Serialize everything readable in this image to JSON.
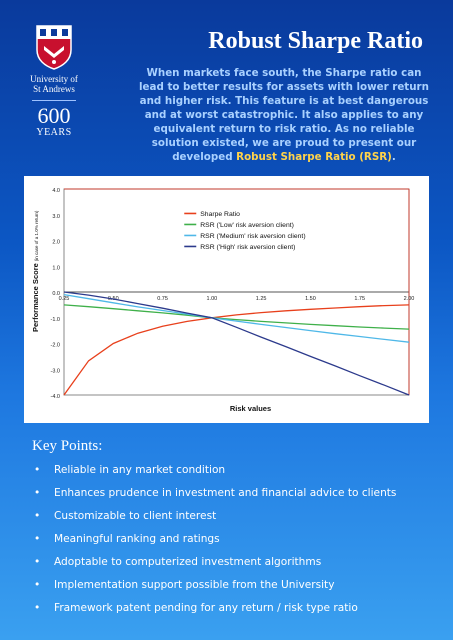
{
  "branding": {
    "university_line1": "University of",
    "university_line2": "St Andrews",
    "years_number": "600",
    "years_label": "YEARS"
  },
  "header": {
    "title": "Robust Sharpe Ratio"
  },
  "intro": {
    "text_main": "When markets face south, the Sharpe ratio can lead to better results for assets with lower return and higher risk. This feature is at best dangerous and at worst catastrophic. It also applies to any equivalent return to risk ratio. As no reliable solution existed, we are proud to present our developed ",
    "highlight": "Robust Sharpe Ratio (RSR)",
    "text_end": "."
  },
  "chart_data": {
    "type": "line",
    "xlabel": "Risk values",
    "ylabel": "Performance Score",
    "ylabel_note": "(in case of a 1.0% return)",
    "xlim": [
      0.25,
      2.0
    ],
    "ylim": [
      -4.0,
      4.0
    ],
    "x_ticks": [
      "0.25",
      "0.50",
      "0.75",
      "1.00",
      "1.25",
      "1.50",
      "1.75",
      "2.00"
    ],
    "y_ticks": [
      "4.0",
      "3.0",
      "2.0",
      "1.0",
      "0.0",
      "-1.0",
      "-2.0",
      "-3.0",
      "-4.0"
    ],
    "legend_position": "top-right",
    "x": [
      0.25,
      0.375,
      0.5,
      0.625,
      0.75,
      0.875,
      1.0,
      1.125,
      1.25,
      1.375,
      1.5,
      1.625,
      1.75,
      1.875,
      2.0
    ],
    "series": [
      {
        "name": "Sharpe Ratio",
        "color": "#e8401c",
        "values": [
          -4.0,
          -2.67,
          -2.0,
          -1.6,
          -1.33,
          -1.14,
          -1.0,
          -0.89,
          -0.8,
          -0.73,
          -0.67,
          -0.62,
          -0.57,
          -0.53,
          -0.5
        ]
      },
      {
        "name": "RSR ('Low' risk aversion client)",
        "color": "#3fb04a",
        "values": [
          -0.5,
          -0.57,
          -0.65,
          -0.73,
          -0.81,
          -0.9,
          -1.0,
          -1.07,
          -1.14,
          -1.2,
          -1.26,
          -1.31,
          -1.36,
          -1.4,
          -1.44
        ]
      },
      {
        "name": "RSR ('Medium' risk aversion client)",
        "color": "#4fb8e8",
        "values": [
          -0.1,
          -0.26,
          -0.42,
          -0.58,
          -0.72,
          -0.86,
          -1.0,
          -1.13,
          -1.26,
          -1.38,
          -1.5,
          -1.62,
          -1.73,
          -1.84,
          -1.95
        ]
      },
      {
        "name": "RSR ('High' risk aversion client)",
        "color": "#2c3a8c",
        "values": [
          0.0,
          -0.12,
          -0.27,
          -0.45,
          -0.63,
          -0.82,
          -1.0,
          -1.37,
          -1.75,
          -2.12,
          -2.5,
          -2.87,
          -3.25,
          -3.62,
          -4.0
        ]
      }
    ]
  },
  "key_points": {
    "heading": "Key Points:",
    "bullet": "•",
    "items": [
      "Reliable in any market condition",
      "Enhances prudence in investment and financial advice to clients",
      "Customizable to client interest",
      "Meaningful ranking and ratings",
      "Adoptable to computerized investment algorithms",
      "Implementation support possible from the University",
      "Framework patent pending for any return / risk type ratio"
    ]
  }
}
